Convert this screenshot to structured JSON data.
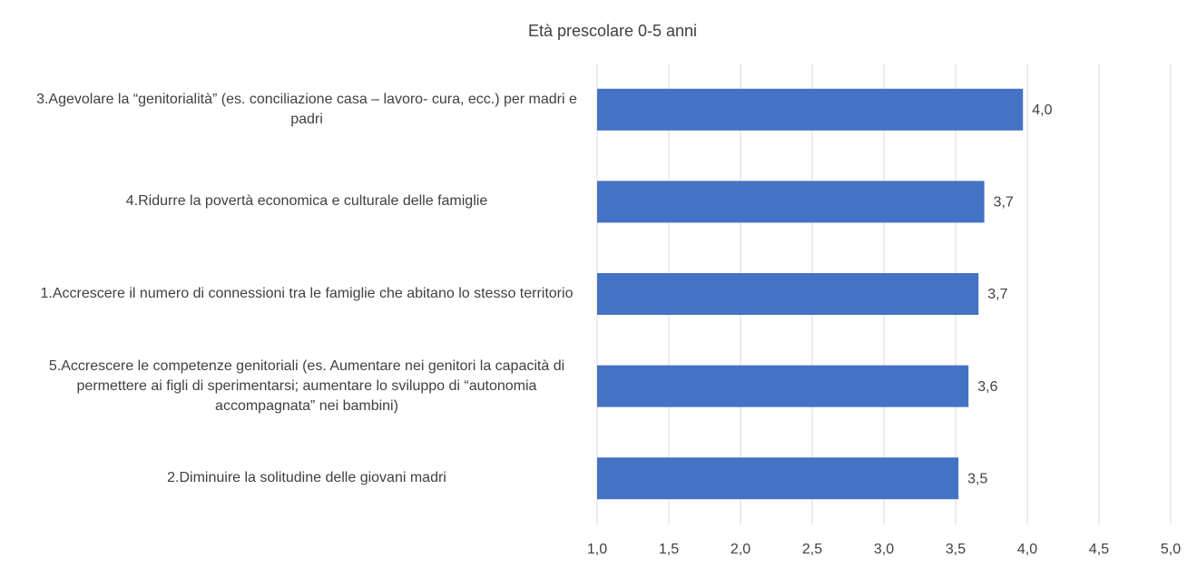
{
  "chart_data": {
    "type": "bar",
    "orientation": "horizontal",
    "title": "Età prescolare 0-5 anni",
    "categories": [
      "3.Agevolare la “genitorialità” (es. conciliazione casa – lavoro- cura, ecc.) per madri e padri",
      "4.Ridurre la povertà economica e culturale delle famiglie",
      "1.Accrescere il numero di connessioni tra le famiglie che abitano lo stesso territorio",
      "5.Accrescere le competenze genitoriali (es. Aumentare nei genitori la capacità di permettere ai figli di sperimentarsi; aumentare lo sviluppo di “autonomia accompagnata” nei bambini)",
      "2.Diminuire la solitudine delle giovani madri"
    ],
    "values": [
      3.97,
      3.7,
      3.66,
      3.59,
      3.52
    ],
    "value_labels": [
      "4,0",
      "3,7",
      "3,7",
      "3,6",
      "3,5"
    ],
    "color": "#4472c4",
    "xlim": [
      1.0,
      5.0
    ],
    "xticks": [
      {
        "value": 1.0,
        "label": "1,0"
      },
      {
        "value": 1.5,
        "label": "1,5"
      },
      {
        "value": 2.0,
        "label": "2,0"
      },
      {
        "value": 2.5,
        "label": "2,5"
      },
      {
        "value": 3.0,
        "label": "3,0"
      },
      {
        "value": 3.5,
        "label": "3,5"
      },
      {
        "value": 4.0,
        "label": "4,0"
      },
      {
        "value": 4.5,
        "label": "4,5"
      },
      {
        "value": 5.0,
        "label": "5,0"
      }
    ],
    "grid": true
  }
}
